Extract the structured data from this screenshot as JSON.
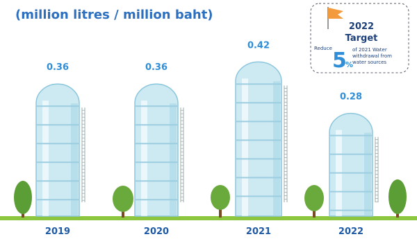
{
  "chart_data": {
    "type": "bar",
    "title": "(million litres / million baht)",
    "categories": [
      "2019",
      "2020",
      "2021",
      "2022"
    ],
    "values": [
      0.36,
      0.36,
      0.42,
      0.28
    ],
    "color": "#cdeaf3",
    "target": {
      "title": [
        "2022",
        "Target"
      ],
      "prefix": "Reduce",
      "value": 5,
      "unit": "%",
      "description": [
        "of 2021 Water",
        "withdrawal from",
        "water sources"
      ]
    }
  }
}
